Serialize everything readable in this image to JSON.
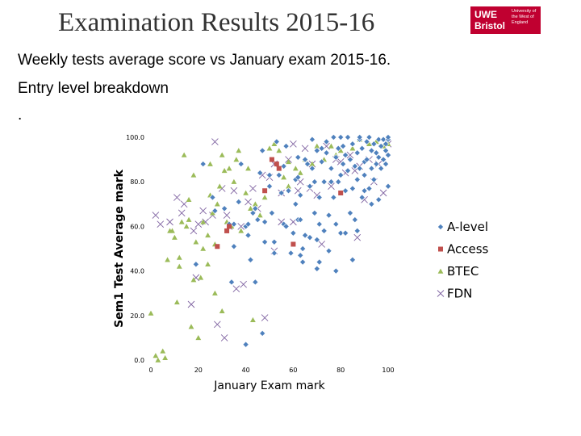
{
  "header": {
    "title": "Examination Results 2015-16",
    "logo_main": "UWE\nBristol",
    "logo_sub": "University of the West of England"
  },
  "slide": {
    "subtitle": "Weekly tests average score vs January exam 2015-16.",
    "subtitle2": "Entry level breakdown",
    "dot": "."
  },
  "colors": {
    "alevel": "#4f81bd",
    "access": "#c0504d",
    "btec": "#9bbb59",
    "fdn": "#8064a2"
  },
  "chart_data": {
    "type": "scatter",
    "title": "",
    "xlabel": "January Exam mark",
    "ylabel": "Sem1 Test Average mark",
    "xlim": [
      0,
      100
    ],
    "ylim": [
      0,
      100
    ],
    "xticks": [
      0,
      20,
      40,
      60,
      80,
      100
    ],
    "yticks": [
      0,
      20,
      40,
      60,
      80,
      100
    ],
    "xtick_labels": [
      "0",
      "20",
      "40",
      "60",
      "80",
      "100"
    ],
    "ytick_labels": [
      "0.0",
      "20.0",
      "40.0",
      "60.0",
      "80.0",
      "100.0"
    ],
    "legend_position": "right",
    "grid": false,
    "series": [
      {
        "name": "A-level",
        "marker": "diamond",
        "points": [
          [
            19,
            43
          ],
          [
            22,
            88
          ],
          [
            26,
            73
          ],
          [
            27,
            67
          ],
          [
            31,
            68
          ],
          [
            33,
            61
          ],
          [
            34,
            35
          ],
          [
            35,
            51
          ],
          [
            37,
            71
          ],
          [
            38,
            88
          ],
          [
            40,
            60
          ],
          [
            40,
            7
          ],
          [
            41,
            56
          ],
          [
            42,
            45
          ],
          [
            43,
            66
          ],
          [
            44,
            68
          ],
          [
            44,
            35
          ],
          [
            45,
            63
          ],
          [
            46,
            84
          ],
          [
            47,
            94
          ],
          [
            47,
            12
          ],
          [
            48,
            62
          ],
          [
            48,
            53
          ],
          [
            50,
            78
          ],
          [
            51,
            66
          ],
          [
            52,
            53
          ],
          [
            52,
            48
          ],
          [
            53,
            98
          ],
          [
            54,
            83
          ],
          [
            55,
            75
          ],
          [
            56,
            61
          ],
          [
            56,
            87
          ],
          [
            57,
            96
          ],
          [
            58,
            76
          ],
          [
            59,
            48
          ],
          [
            60,
            57
          ],
          [
            60,
            57
          ],
          [
            61,
            70
          ],
          [
            61,
            81
          ],
          [
            62,
            63
          ],
          [
            62,
            91
          ],
          [
            63,
            74
          ],
          [
            63,
            63
          ],
          [
            64,
            50
          ],
          [
            64,
            44
          ],
          [
            65,
            56
          ],
          [
            66,
            88
          ],
          [
            67,
            78
          ],
          [
            67,
            55
          ],
          [
            68,
            86
          ],
          [
            68,
            99
          ],
          [
            69,
            80
          ],
          [
            69,
            66
          ],
          [
            70,
            41
          ],
          [
            70,
            94
          ],
          [
            71,
            73
          ],
          [
            71,
            61
          ],
          [
            72,
            89
          ],
          [
            72,
            95
          ],
          [
            73,
            80
          ],
          [
            73,
            58
          ],
          [
            74,
            98
          ],
          [
            75,
            65
          ],
          [
            75,
            49
          ],
          [
            76,
            86
          ],
          [
            76,
            80
          ],
          [
            77,
            73
          ],
          [
            77,
            100
          ],
          [
            78,
            91
          ],
          [
            78,
            61
          ],
          [
            79,
            95
          ],
          [
            79,
            80
          ],
          [
            80,
            83
          ],
          [
            80,
            57
          ],
          [
            81,
            88
          ],
          [
            81,
            96
          ],
          [
            82,
            92
          ],
          [
            82,
            76
          ],
          [
            83,
            85
          ],
          [
            83,
            100
          ],
          [
            84,
            66
          ],
          [
            84,
            90
          ],
          [
            85,
            77
          ],
          [
            85,
            97
          ],
          [
            86,
            87
          ],
          [
            86,
            63
          ],
          [
            87,
            93
          ],
          [
            87,
            81
          ],
          [
            88,
            99
          ],
          [
            88,
            86
          ],
          [
            89,
            73
          ],
          [
            89,
            95
          ],
          [
            90,
            89
          ],
          [
            90,
            83
          ],
          [
            91,
            98
          ],
          [
            91,
            90
          ],
          [
            92,
            77
          ],
          [
            92,
            100
          ],
          [
            93,
            86
          ],
          [
            93,
            94
          ],
          [
            94,
            81
          ],
          [
            94,
            97
          ],
          [
            95,
            93
          ],
          [
            95,
            88
          ],
          [
            96,
            99
          ],
          [
            96,
            91
          ],
          [
            97,
            86
          ],
          [
            97,
            96
          ],
          [
            98,
            99
          ],
          [
            98,
            90
          ],
          [
            99,
            94
          ],
          [
            99,
            97
          ],
          [
            100,
            92
          ],
          [
            100,
            99
          ],
          [
            100,
            78
          ],
          [
            100,
            100
          ],
          [
            99,
            88
          ],
          [
            87,
            58
          ],
          [
            82,
            57
          ],
          [
            78,
            40
          ],
          [
            71,
            44
          ],
          [
            63,
            47
          ],
          [
            57,
            60
          ],
          [
            85,
            45
          ],
          [
            93,
            70
          ],
          [
            90,
            76
          ],
          [
            96,
            72
          ],
          [
            88,
            100
          ],
          [
            80,
            100
          ],
          [
            74,
            93
          ],
          [
            65,
            90
          ],
          [
            62,
            82
          ],
          [
            50,
            83
          ],
          [
            41,
            61
          ],
          [
            70,
            54
          ],
          [
            35,
            61
          ]
        ]
      },
      {
        "name": "Access",
        "marker": "square",
        "points": [
          [
            28,
            51
          ],
          [
            32,
            58
          ],
          [
            33,
            60
          ],
          [
            48,
            76
          ],
          [
            51,
            90
          ],
          [
            53,
            88
          ],
          [
            54,
            86
          ],
          [
            60,
            52
          ],
          [
            80,
            75
          ]
        ]
      },
      {
        "name": "BTEC",
        "marker": "triangle",
        "points": [
          [
            0,
            21
          ],
          [
            2,
            2
          ],
          [
            3,
            0
          ],
          [
            5,
            4
          ],
          [
            6,
            1
          ],
          [
            7,
            45
          ],
          [
            8,
            58
          ],
          [
            10,
            55
          ],
          [
            11,
            26
          ],
          [
            12,
            46
          ],
          [
            13,
            62
          ],
          [
            15,
            60
          ],
          [
            16,
            72
          ],
          [
            17,
            15
          ],
          [
            18,
            83
          ],
          [
            18,
            36
          ],
          [
            20,
            10
          ],
          [
            21,
            37
          ],
          [
            22,
            62
          ],
          [
            22,
            50
          ],
          [
            24,
            56
          ],
          [
            25,
            88
          ],
          [
            26,
            66
          ],
          [
            27,
            52
          ],
          [
            28,
            70
          ],
          [
            29,
            78
          ],
          [
            30,
            92
          ],
          [
            30,
            22
          ],
          [
            31,
            85
          ],
          [
            32,
            62
          ],
          [
            33,
            86
          ],
          [
            34,
            60
          ],
          [
            35,
            80
          ],
          [
            36,
            90
          ],
          [
            38,
            58
          ],
          [
            40,
            75
          ],
          [
            42,
            68
          ],
          [
            43,
            18
          ],
          [
            44,
            70
          ],
          [
            46,
            65
          ],
          [
            48,
            73
          ],
          [
            50,
            95
          ],
          [
            52,
            97
          ],
          [
            54,
            94
          ],
          [
            56,
            82
          ],
          [
            58,
            78
          ],
          [
            61,
            86
          ],
          [
            63,
            84
          ],
          [
            65,
            90
          ],
          [
            68,
            88
          ],
          [
            70,
            96
          ],
          [
            73,
            90
          ],
          [
            76,
            96
          ],
          [
            78,
            92
          ],
          [
            80,
            94
          ],
          [
            85,
            95
          ],
          [
            88,
            99
          ],
          [
            92,
            97
          ],
          [
            95,
            98
          ],
          [
            98,
            96
          ],
          [
            100,
            97
          ],
          [
            14,
            92
          ],
          [
            9,
            58
          ],
          [
            12,
            42
          ],
          [
            25,
            74
          ],
          [
            19,
            53
          ],
          [
            37,
            94
          ],
          [
            41,
            86
          ],
          [
            27,
            30
          ],
          [
            24,
            43
          ],
          [
            16,
            63
          ],
          [
            58,
            89
          ]
        ]
      },
      {
        "name": "FDN",
        "marker": "x",
        "points": [
          [
            2,
            65
          ],
          [
            4,
            61
          ],
          [
            8,
            62
          ],
          [
            11,
            73
          ],
          [
            13,
            66
          ],
          [
            14,
            70
          ],
          [
            17,
            25
          ],
          [
            18,
            58
          ],
          [
            19,
            37
          ],
          [
            20,
            61
          ],
          [
            22,
            67
          ],
          [
            23,
            62
          ],
          [
            26,
            65
          ],
          [
            27,
            98
          ],
          [
            28,
            16
          ],
          [
            30,
            77
          ],
          [
            31,
            10
          ],
          [
            32,
            65
          ],
          [
            33,
            60
          ],
          [
            35,
            76
          ],
          [
            36,
            32
          ],
          [
            38,
            60
          ],
          [
            39,
            34
          ],
          [
            41,
            71
          ],
          [
            43,
            77
          ],
          [
            45,
            68
          ],
          [
            47,
            83
          ],
          [
            48,
            19
          ],
          [
            50,
            82
          ],
          [
            52,
            88
          ],
          [
            55,
            75
          ],
          [
            58,
            90
          ],
          [
            60,
            62
          ],
          [
            62,
            76
          ],
          [
            63,
            80
          ],
          [
            65,
            95
          ],
          [
            68,
            88
          ],
          [
            70,
            74
          ],
          [
            72,
            52
          ],
          [
            74,
            96
          ],
          [
            76,
            78
          ],
          [
            78,
            90
          ],
          [
            80,
            89
          ],
          [
            82,
            84
          ],
          [
            84,
            92
          ],
          [
            86,
            85
          ],
          [
            88,
            87
          ],
          [
            90,
            72
          ],
          [
            92,
            90
          ],
          [
            94,
            80
          ],
          [
            96,
            88
          ],
          [
            98,
            75
          ],
          [
            100,
            97
          ],
          [
            52,
            49
          ],
          [
            55,
            62
          ],
          [
            87,
            55
          ],
          [
            60,
            97
          ],
          [
            67,
            77
          ]
        ]
      }
    ]
  }
}
